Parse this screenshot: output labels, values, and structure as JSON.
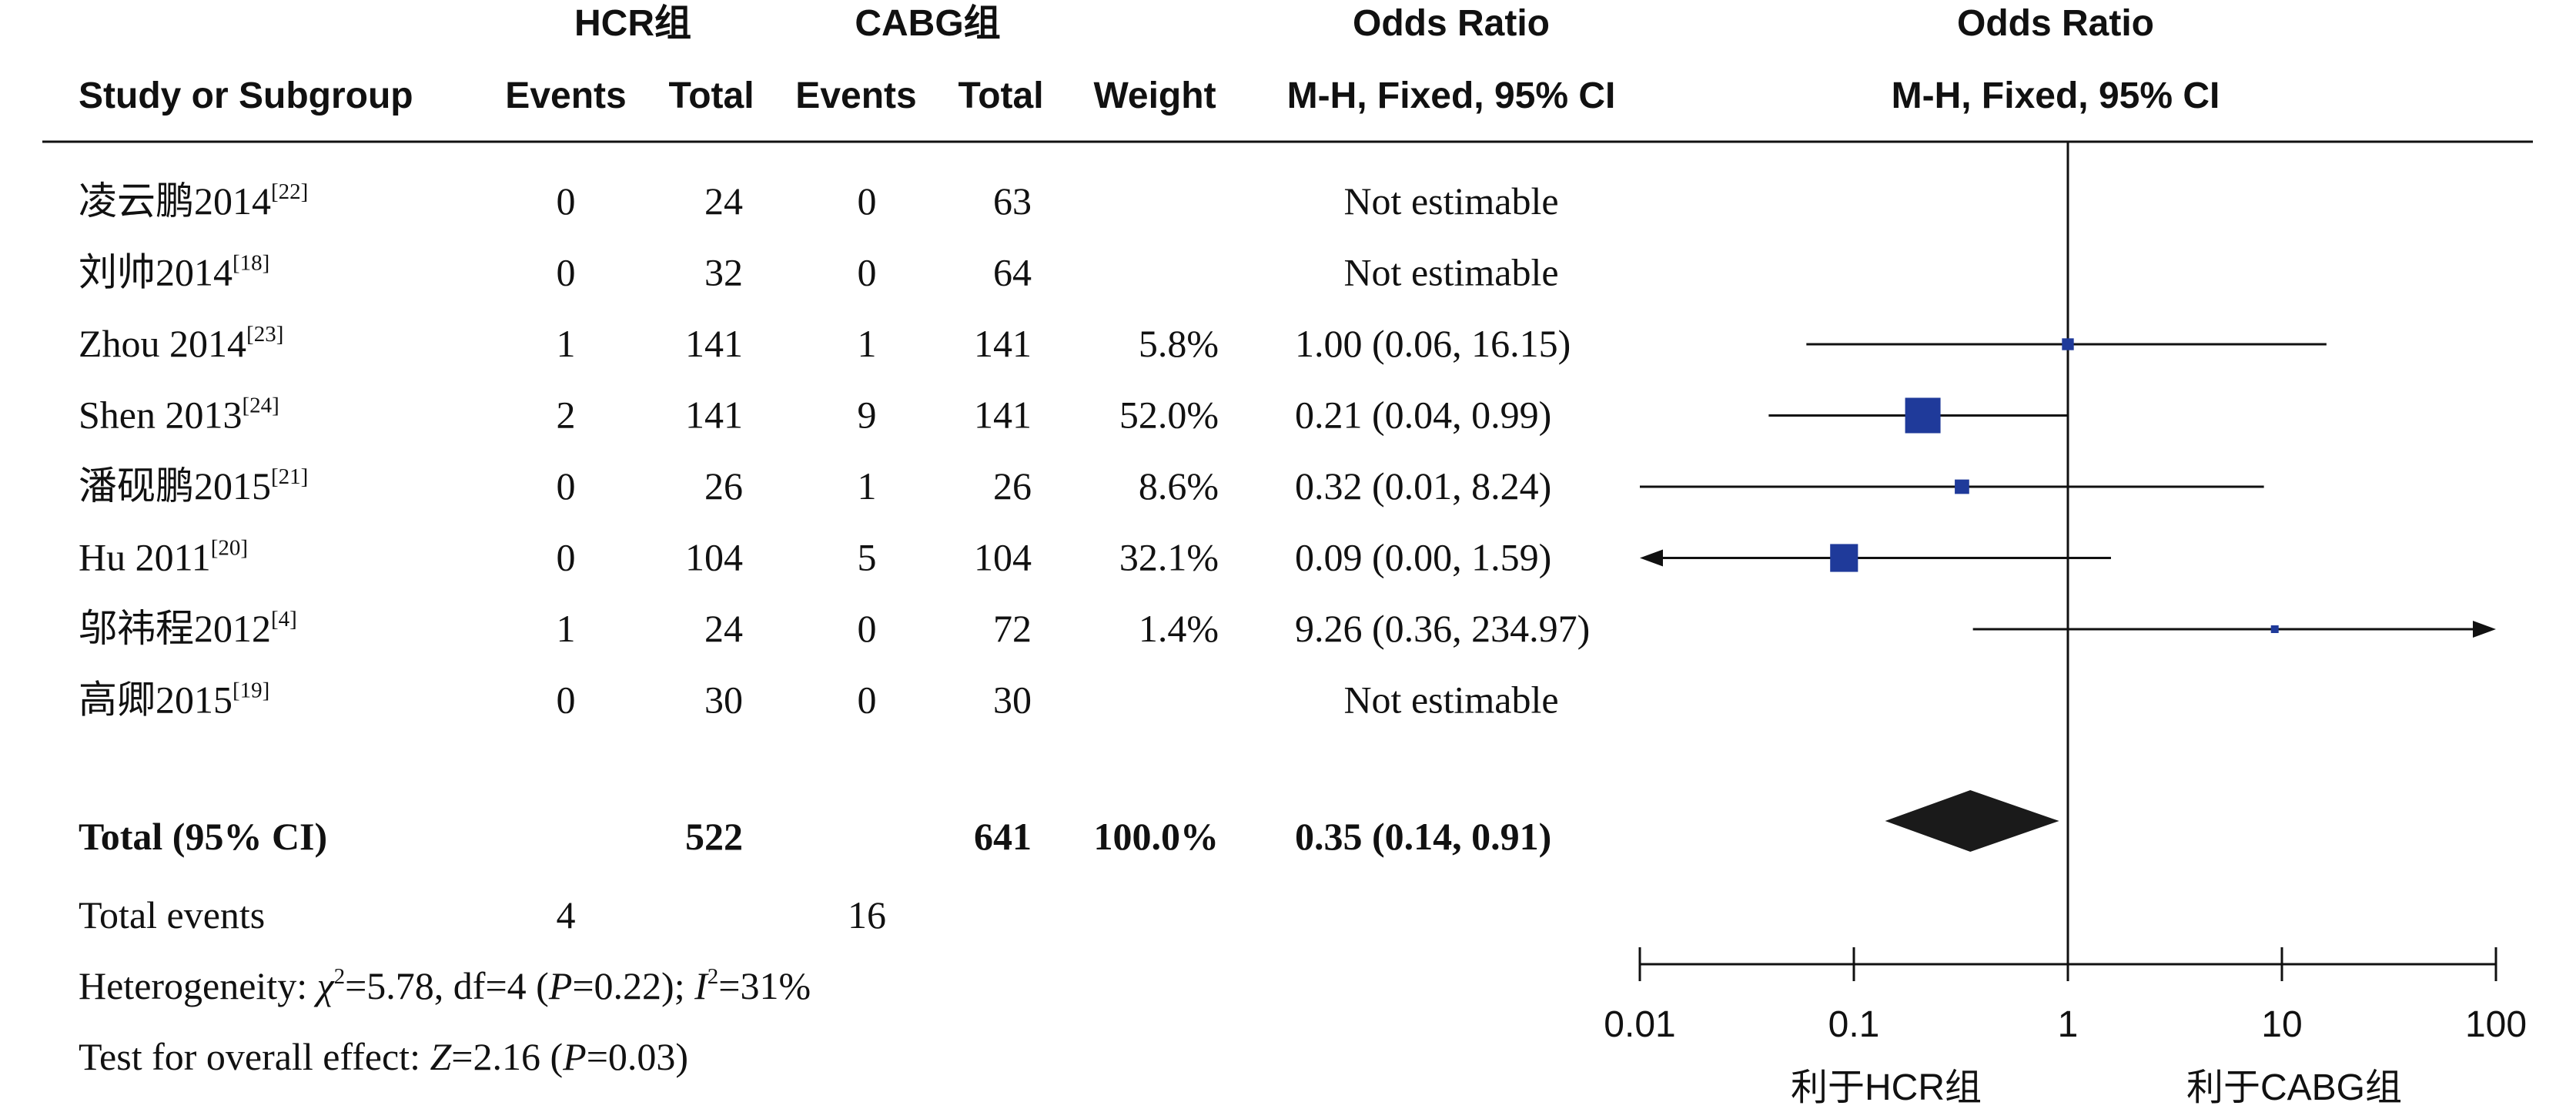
{
  "header": {
    "group1": "HCR组",
    "group2": "CABG组",
    "or_title_left": "Odds Ratio",
    "or_title_right": "Odds Ratio",
    "study": "Study or Subgroup",
    "events1": "Events",
    "total1": "Total",
    "events2": "Events",
    "total2": "Total",
    "weight": "Weight",
    "method_left": "M-H, Fixed, 95% CI",
    "method_right": "M-H, Fixed, 95% CI"
  },
  "chart_data": {
    "type": "forest",
    "x_scale": "log",
    "xlim": [
      0.01,
      100
    ],
    "x_ticks": [
      0.01,
      0.1,
      1,
      10,
      100
    ],
    "x_tick_labels": [
      "0.01",
      "0.1",
      "1",
      "10",
      "100"
    ],
    "reference_line": 1,
    "favours_left": "利于HCR组",
    "favours_right": "利于CABG组",
    "studies": [
      {
        "name": "凌云鹏2014",
        "ref": "[22]",
        "e1": "0",
        "n1": "24",
        "e2": "0",
        "n2": "63",
        "weight": "",
        "ci_text": "Not estimable",
        "or": null,
        "lo": null,
        "hi": null,
        "w": 0
      },
      {
        "name": "刘帅2014",
        "ref": "[18]",
        "e1": "0",
        "n1": "32",
        "e2": "0",
        "n2": "64",
        "weight": "",
        "ci_text": "Not estimable",
        "or": null,
        "lo": null,
        "hi": null,
        "w": 0
      },
      {
        "name": "Zhou 2014",
        "ref": "[23]",
        "e1": "1",
        "n1": "141",
        "e2": "1",
        "n2": "141",
        "weight": "5.8%",
        "ci_text": "1.00 (0.06, 16.15)",
        "or": 1.0,
        "lo": 0.06,
        "hi": 16.15,
        "w": 5.8
      },
      {
        "name": "Shen 2013",
        "ref": "[24]",
        "e1": "2",
        "n1": "141",
        "e2": "9",
        "n2": "141",
        "weight": "52.0%",
        "ci_text": "0.21 (0.04, 0.99)",
        "or": 0.21,
        "lo": 0.04,
        "hi": 0.99,
        "w": 52.0
      },
      {
        "name": "潘砚鹏2015",
        "ref": "[21]",
        "e1": "0",
        "n1": "26",
        "e2": "1",
        "n2": "26",
        "weight": "8.6%",
        "ci_text": "0.32 (0.01, 8.24)",
        "or": 0.32,
        "lo": 0.01,
        "hi": 8.24,
        "w": 8.6
      },
      {
        "name": "Hu 2011",
        "ref": "[20]",
        "e1": "0",
        "n1": "104",
        "e2": "5",
        "n2": "104",
        "weight": "32.1%",
        "ci_text": "0.09 (0.00, 1.59)",
        "or": 0.09,
        "lo": 0.0,
        "hi": 1.59,
        "w": 32.1
      },
      {
        "name": "邬祎程2012",
        "ref": "[4]",
        "e1": "1",
        "n1": "24",
        "e2": "0",
        "n2": "72",
        "weight": "1.4%",
        "ci_text": "9.26 (0.36, 234.97)",
        "or": 9.26,
        "lo": 0.36,
        "hi": 234.97,
        "w": 1.4
      },
      {
        "name": "高卿2015",
        "ref": "[19]",
        "e1": "0",
        "n1": "30",
        "e2": "0",
        "n2": "30",
        "weight": "",
        "ci_text": "Not estimable",
        "or": null,
        "lo": null,
        "hi": null,
        "w": 0
      }
    ],
    "total": {
      "label": "Total (95% CI)",
      "n1": "522",
      "n2": "641",
      "weight": "100.0%",
      "ci_text": "0.35 (0.14, 0.91)",
      "or": 0.35,
      "lo": 0.14,
      "hi": 0.91
    },
    "total_events": {
      "label": "Total events",
      "e1": "4",
      "e2": "16"
    },
    "heterogeneity": {
      "label": "Heterogeneity: ",
      "chi_symbol": "χ",
      "chi_sq": "2",
      "chi_value": "=5.78, df=4 (",
      "p_symbol": "P",
      "p_value": "=0.22); ",
      "i_symbol": "I",
      "i_sq": "2",
      "i_value": "=31%"
    },
    "overall_effect": {
      "label": "Test for overall effect: ",
      "z_symbol": "Z",
      "z_value": "=2.16 (",
      "p_symbol": "P",
      "p_value": "=0.03)"
    }
  }
}
